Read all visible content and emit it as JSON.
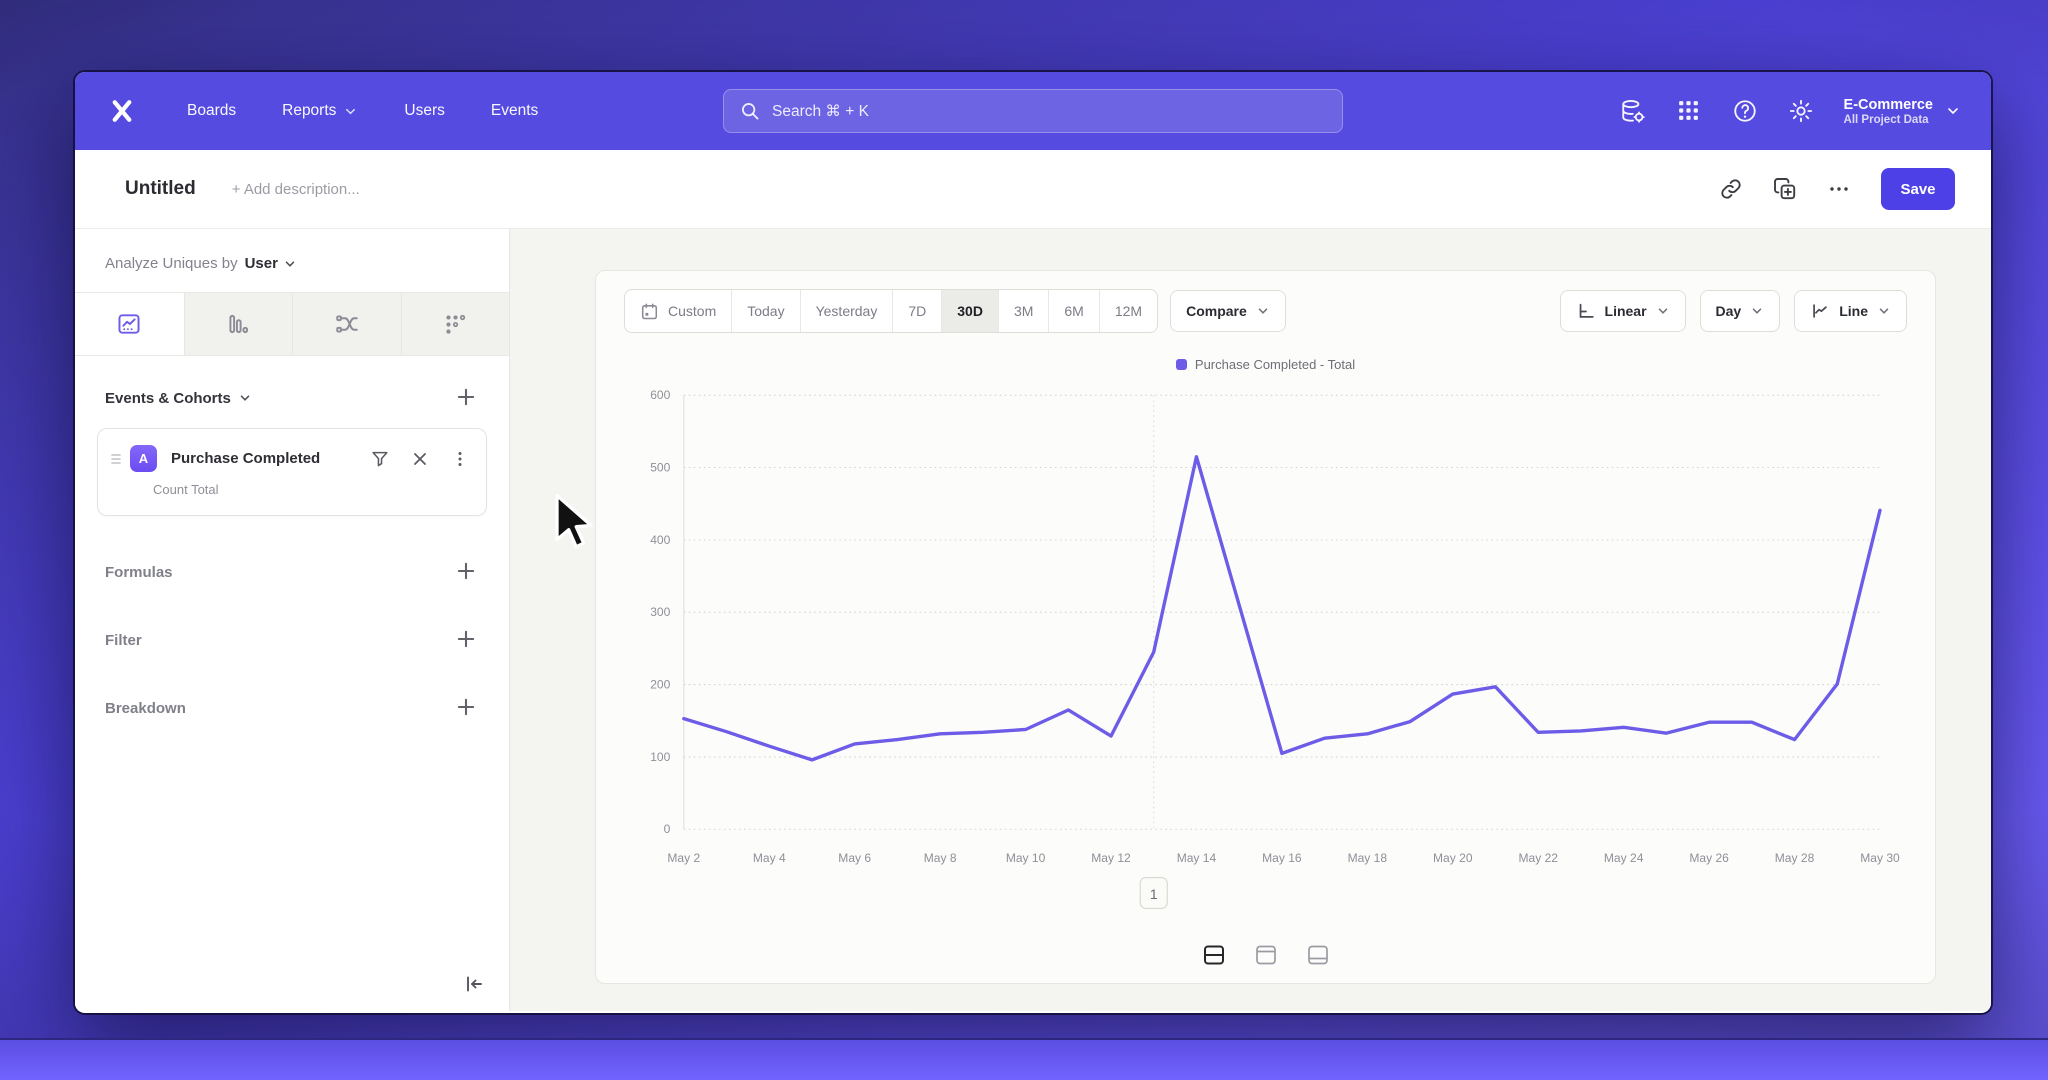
{
  "colors": {
    "nav": "#564BE0",
    "accent": "#5A4FE8",
    "line": "#6C5CE7",
    "save": "#4C40E6"
  },
  "nav": {
    "links": [
      {
        "label": "Boards",
        "has_dropdown": false
      },
      {
        "label": "Reports",
        "has_dropdown": true
      },
      {
        "label": "Users",
        "has_dropdown": false
      },
      {
        "label": "Events",
        "has_dropdown": false
      }
    ],
    "search_placeholder": "Search  ⌘ + K",
    "icons": [
      "data-management-icon",
      "apps-grid-icon",
      "help-icon",
      "settings-gear-icon"
    ],
    "project": {
      "name": "E-Commerce",
      "subtitle": "All Project Data"
    }
  },
  "titlebar": {
    "title": "Untitled",
    "description_placeholder": "+ Add description...",
    "icons": [
      "link-icon",
      "duplicate-icon",
      "more-icon"
    ],
    "save_label": "Save"
  },
  "sidebar": {
    "analyze_prefix": "Analyze Uniques by",
    "analyze_value": "User",
    "view_tabs": [
      {
        "icon": "insights-line-chart-icon",
        "active": true
      },
      {
        "icon": "bar-chart-icon",
        "active": false
      },
      {
        "icon": "flows-icon",
        "active": false
      },
      {
        "icon": "retention-grid-icon",
        "active": false
      }
    ],
    "events_section_label": "Events & Cohorts",
    "event_card": {
      "badge": "A",
      "name": "Purchase Completed",
      "measure": "Count Total",
      "icons": [
        "drag-handle-icon",
        "filter-funnel-icon",
        "remove-icon",
        "kebab-menu-icon"
      ]
    },
    "groups": [
      {
        "label": "Formulas"
      },
      {
        "label": "Filter"
      },
      {
        "label": "Breakdown"
      }
    ]
  },
  "chart_controls": {
    "ranges": [
      "Custom",
      "Today",
      "Yesterday",
      "7D",
      "30D",
      "3M",
      "6M",
      "12M"
    ],
    "selected_range": "30D",
    "compare_label": "Compare",
    "scale_label": "Linear",
    "interval_label": "Day",
    "type_label": "Line"
  },
  "chart_data": {
    "type": "line",
    "x": [
      "May 2",
      "May 3",
      "May 4",
      "May 5",
      "May 6",
      "May 7",
      "May 8",
      "May 9",
      "May 10",
      "May 11",
      "May 12",
      "May 13",
      "May 14",
      "May 15",
      "May 16",
      "May 17",
      "May 18",
      "May 19",
      "May 20",
      "May 21",
      "May 22",
      "May 23",
      "May 24",
      "May 25",
      "May 26",
      "May 27",
      "May 28",
      "May 29",
      "May 30"
    ],
    "x_tick_step": 2,
    "series": [
      {
        "name": "Purchase Completed - Total",
        "color": "#6C5CE7",
        "values": [
          153,
          135,
          115,
          96,
          118,
          124,
          132,
          134,
          138,
          165,
          129,
          245,
          515,
          310,
          105,
          126,
          132,
          149,
          187,
          197,
          134,
          136,
          141,
          133,
          148,
          148,
          124,
          201,
          441
        ]
      }
    ],
    "ylim": [
      0,
      600
    ],
    "yticks": [
      0,
      100,
      200,
      300,
      400,
      500,
      600
    ],
    "grid": "dotted-horizontal",
    "vertical_marker_x": "May 13",
    "legend_position": "top-center"
  },
  "pagination_label": "1",
  "layout_toggles": [
    {
      "icon": "split-rows-icon",
      "active": true
    },
    {
      "icon": "panel-top-icon",
      "active": false
    },
    {
      "icon": "panel-bottom-icon",
      "active": false
    }
  ]
}
